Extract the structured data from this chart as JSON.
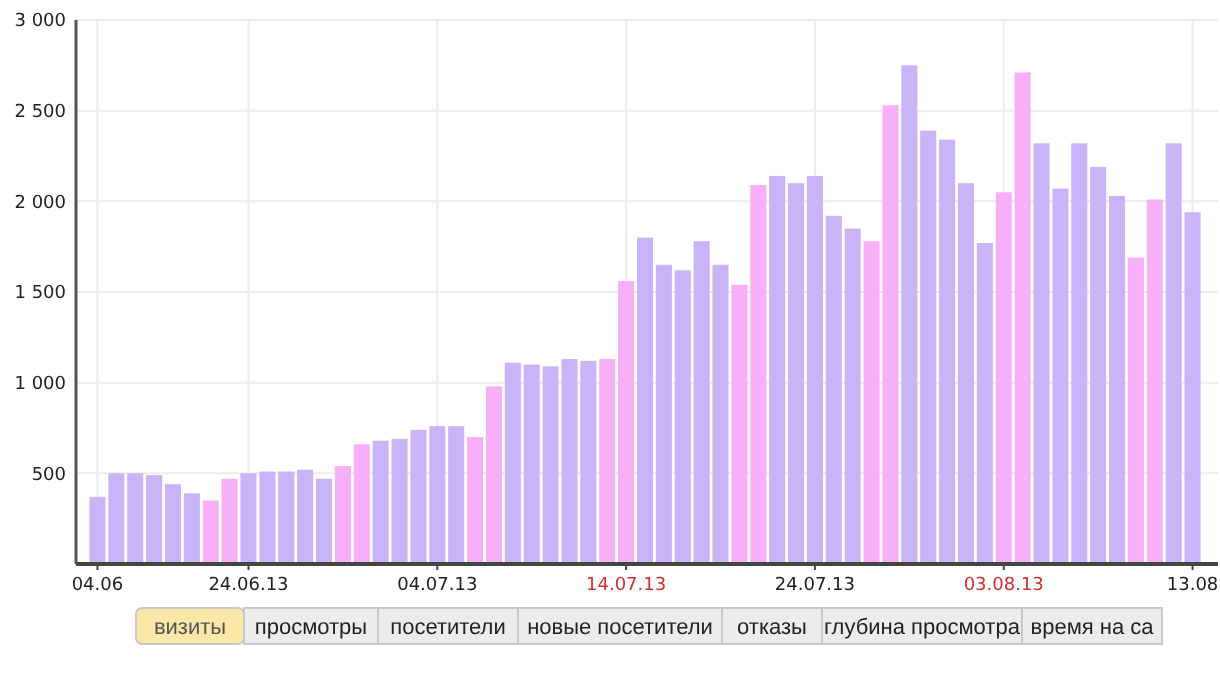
{
  "chart_data": {
    "type": "bar",
    "categories": [
      "04.06",
      null,
      null,
      null,
      null,
      null,
      null,
      null,
      "24.06.13",
      null,
      null,
      null,
      null,
      null,
      null,
      null,
      null,
      null,
      "04.07.13",
      null,
      null,
      null,
      null,
      null,
      null,
      null,
      null,
      null,
      "14.07.13",
      null,
      null,
      null,
      null,
      null,
      null,
      null,
      null,
      null,
      "24.07.13",
      null,
      null,
      null,
      null,
      null,
      null,
      null,
      null,
      null,
      "03.08.13",
      null,
      null,
      null,
      null,
      null,
      null,
      null,
      null,
      null,
      "13.08"
    ],
    "values": [
      370,
      500,
      500,
      490,
      440,
      390,
      350,
      470,
      500,
      510,
      510,
      520,
      470,
      540,
      660,
      680,
      690,
      740,
      760,
      760,
      700,
      980,
      1110,
      1100,
      1090,
      1130,
      1120,
      1130,
      1560,
      1800,
      1650,
      1620,
      1780,
      1650,
      1540,
      2090,
      2140,
      2100,
      2140,
      1920,
      1850,
      1780,
      2530,
      2750,
      2390,
      2340,
      2100,
      1770,
      2050,
      2710,
      2320,
      2070,
      2320,
      2190,
      2030,
      1690,
      2010,
      2320,
      1940
    ],
    "colors": [
      "#c8b4f7",
      "#c8b4f7",
      "#c8b4f7",
      "#c8b4f7",
      "#c8b4f7",
      "#c8b4f7",
      "#f7b0f7",
      "#f7b0f7",
      "#c8b4f7",
      "#c8b4f7",
      "#c8b4f7",
      "#c8b4f7",
      "#c8b4f7",
      "#f7b0f7",
      "#f7b0f7",
      "#c8b4f7",
      "#c8b4f7",
      "#c8b4f7",
      "#c8b4f7",
      "#c8b4f7",
      "#f7b0f7",
      "#f7b0f7",
      "#c8b4f7",
      "#c8b4f7",
      "#c8b4f7",
      "#c8b4f7",
      "#c8b4f7",
      "#f7b0f7",
      "#f7b0f7",
      "#c8b4f7",
      "#c8b4f7",
      "#c8b4f7",
      "#c8b4f7",
      "#c8b4f7",
      "#f7b0f7",
      "#f7b0f7",
      "#c8b4f7",
      "#c8b4f7",
      "#c8b4f7",
      "#c8b4f7",
      "#c8b4f7",
      "#f7b0f7",
      "#f7b0f7",
      "#c8b4f7",
      "#c8b4f7",
      "#c8b4f7",
      "#c8b4f7",
      "#c8b4f7",
      "#f7b0f7",
      "#f7b0f7",
      "#c8b4f7",
      "#c8b4f7",
      "#c8b4f7",
      "#c8b4f7",
      "#c8b4f7",
      "#f7b0f7",
      "#f7b0f7",
      "#c8b4f7",
      "#c8b4f7"
    ],
    "ylim": [
      0,
      3000
    ],
    "yticks": [
      500,
      {
        "value": 1000,
        "label": "1 000"
      },
      {
        "value": 1500,
        "label": "1 500"
      },
      {
        "value": 2000,
        "label": "2 000"
      },
      {
        "value": 2500,
        "label": "2 500"
      },
      {
        "value": 3000,
        "label": "3 000"
      }
    ],
    "grid": true,
    "annotations": [
      "визиты",
      "просмотры",
      "посетители",
      "новые посетители",
      "отказы",
      "глубина просмотра",
      "время на са"
    ]
  }
}
